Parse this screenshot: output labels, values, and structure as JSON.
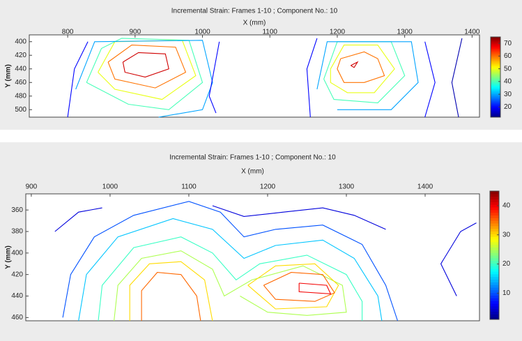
{
  "chart_data": [
    {
      "type": "contour",
      "title": "Incremental Strain: Frames 1-10 ; Component No.: 10",
      "x_label": "X (mm)",
      "y_label": "Y (mm)",
      "xlim": [
        743,
        1411
      ],
      "ylim": [
        390,
        511
      ],
      "y_reversed": true,
      "xticks": [
        800,
        900,
        1000,
        1100,
        1200,
        1300,
        1400
      ],
      "yticks": [
        400,
        420,
        440,
        460,
        480,
        500
      ],
      "colormap": "jet",
      "clim": [
        12,
        75
      ],
      "cticks": [
        20,
        30,
        40,
        50,
        60,
        70
      ],
      "contours": [
        {
          "level": 70,
          "x": [
            882,
            905,
            945,
            950,
            915,
            885,
            882
          ],
          "y": [
            430,
            416,
            418,
            440,
            452,
            445,
            430
          ]
        },
        {
          "level": 60,
          "x": [
            860,
            895,
            960,
            975,
            930,
            870,
            860
          ],
          "y": [
            430,
            405,
            408,
            445,
            468,
            455,
            430
          ]
        },
        {
          "level": 50,
          "x": [
            845,
            870,
            970,
            990,
            940,
            870,
            845
          ],
          "y": [
            445,
            400,
            398,
            450,
            485,
            470,
            445
          ]
        },
        {
          "level": 40,
          "x": [
            828,
            850,
            880,
            980,
            1000,
            950,
            890,
            828
          ],
          "y": [
            460,
            410,
            395,
            398,
            460,
            500,
            492,
            460
          ]
        },
        {
          "level": 30,
          "x": [
            812,
            840,
            1000,
            1015,
            1000,
            935
          ],
          "y": [
            470,
            400,
            398,
            460,
            500,
            511
          ]
        },
        {
          "level": 20,
          "x": [
            800,
            810,
            830
          ],
          "y": [
            511,
            440,
            400
          ]
        },
        {
          "level": 20,
          "x": [
            1025,
            1010,
            1020
          ],
          "y": [
            400,
            480,
            505
          ]
        },
        {
          "level": 70,
          "x": [
            1220,
            1230,
            1225,
            1220
          ],
          "y": [
            435,
            430,
            438,
            435
          ]
        },
        {
          "level": 60,
          "x": [
            1205,
            1240,
            1260,
            1270,
            1240,
            1210,
            1200,
            1205
          ],
          "y": [
            425,
            415,
            425,
            450,
            460,
            460,
            440,
            425
          ]
        },
        {
          "level": 50,
          "x": [
            1190,
            1210,
            1260,
            1285,
            1255,
            1215,
            1190,
            1190
          ],
          "y": [
            440,
            405,
            405,
            440,
            475,
            475,
            460,
            440
          ]
        },
        {
          "level": 40,
          "x": [
            1180,
            1200,
            1280,
            1300,
            1260,
            1195,
            1180
          ],
          "y": [
            455,
            400,
            400,
            450,
            490,
            485,
            455
          ]
        },
        {
          "level": 30,
          "x": [
            1170,
            1185,
            1310,
            1320,
            1280,
            1200
          ],
          "y": [
            470,
            400,
            400,
            460,
            500,
            500
          ]
        },
        {
          "level": 20,
          "x": [
            1160,
            1155,
            1170
          ],
          "y": [
            511,
            440,
            395
          ]
        },
        {
          "level": 20,
          "x": [
            1330,
            1345,
            1330
          ],
          "y": [
            400,
            460,
            511
          ]
        },
        {
          "level": 15,
          "x": [
            1385,
            1370,
            1380
          ],
          "y": [
            395,
            460,
            511
          ]
        }
      ]
    },
    {
      "type": "contour",
      "title": "Incremental Strain: Frames 1-10 ; Component No.: 10",
      "x_label": "X (mm)",
      "y_label": "Y (mm)",
      "xlim": [
        893,
        1469
      ],
      "ylim": [
        345,
        463
      ],
      "y_reversed": true,
      "xticks": [
        900,
        1000,
        1100,
        1200,
        1300,
        1400
      ],
      "yticks": [
        360,
        380,
        400,
        420,
        440,
        460
      ],
      "colormap": "jet",
      "clim": [
        1,
        45
      ],
      "cticks": [
        10,
        20,
        30,
        40
      ],
      "contours": [
        {
          "level": 5,
          "x": [
            930,
            960,
            990
          ],
          "y": [
            380,
            362,
            358
          ]
        },
        {
          "level": 5,
          "x": [
            1130,
            1170,
            1220,
            1270,
            1310,
            1350
          ],
          "y": [
            356,
            366,
            362,
            358,
            365,
            378
          ]
        },
        {
          "level": 5,
          "x": [
            1440,
            1420,
            1445,
            1465
          ],
          "y": [
            440,
            410,
            380,
            372
          ]
        },
        {
          "level": 10,
          "x": [
            940,
            950,
            980,
            1030,
            1100,
            1140,
            1170,
            1210,
            1270,
            1320,
            1350,
            1365
          ],
          "y": [
            460,
            420,
            385,
            365,
            352,
            362,
            385,
            378,
            374,
            392,
            430,
            463
          ]
        },
        {
          "level": 15,
          "x": [
            960,
            970,
            1010,
            1080,
            1130,
            1170,
            1210,
            1270,
            1310,
            1340,
            1345
          ],
          "y": [
            463,
            420,
            385,
            368,
            378,
            405,
            393,
            388,
            405,
            440,
            463
          ]
        },
        {
          "level": 20,
          "x": [
            985,
            990,
            1030,
            1090,
            1130,
            1160,
            1190,
            1250,
            1300,
            1320,
            1320
          ],
          "y": [
            463,
            430,
            395,
            385,
            400,
            425,
            410,
            402,
            420,
            445,
            463
          ]
        },
        {
          "level": 25,
          "x": [
            1005,
            1010,
            1040,
            1090,
            1130,
            1145,
            1180,
            1245,
            1295,
            1300,
            1250,
            1200,
            1165
          ],
          "y": [
            463,
            430,
            405,
            398,
            415,
            440,
            425,
            412,
            430,
            455,
            458,
            455,
            440
          ]
        },
        {
          "level": 30,
          "x": [
            1025,
            1025,
            1050,
            1090,
            1120,
            1130
          ],
          "y": [
            463,
            430,
            410,
            408,
            425,
            463
          ]
        },
        {
          "level": 30,
          "x": [
            1175,
            1210,
            1260,
            1290,
            1275,
            1210,
            1175
          ],
          "y": [
            430,
            412,
            410,
            430,
            450,
            452,
            430
          ]
        },
        {
          "level": 35,
          "x": [
            1040,
            1040,
            1060,
            1090,
            1110,
            1115
          ],
          "y": [
            463,
            435,
            418,
            420,
            440,
            463
          ]
        },
        {
          "level": 35,
          "x": [
            1195,
            1230,
            1270,
            1285,
            1260,
            1210,
            1195
          ],
          "y": [
            430,
            418,
            420,
            437,
            445,
            443,
            430
          ]
        },
        {
          "level": 40,
          "x": [
            1240,
            1275,
            1280,
            1240,
            1240
          ],
          "y": [
            428,
            430,
            438,
            436,
            428
          ]
        }
      ]
    }
  ]
}
